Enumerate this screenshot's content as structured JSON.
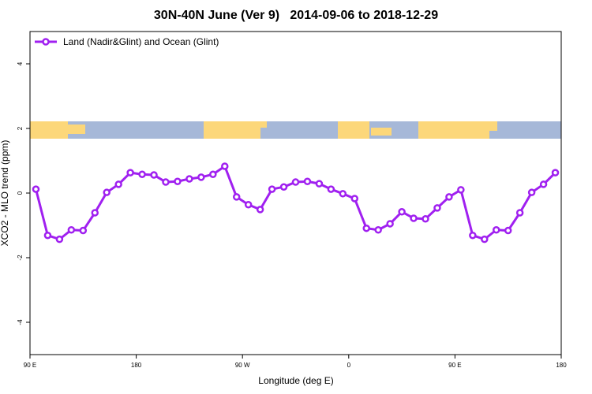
{
  "chart_data": {
    "type": "line",
    "title": "30N-40N June (Ver 9)   2014-09-06 to 2018-12-29",
    "x_label": "Longitude (deg E)",
    "y_label": "XCO2 - MLO trend (ppm)",
    "xlim": [
      90,
      540
    ],
    "ylim": [
      -5,
      5
    ],
    "xticks": [
      {
        "value": 90,
        "label": "90 E"
      },
      {
        "value": 180,
        "label": "180"
      },
      {
        "value": 270,
        "label": "90 W"
      },
      {
        "value": 360,
        "label": "0"
      },
      {
        "value": 450,
        "label": "90 E"
      },
      {
        "value": 540,
        "label": "180"
      }
    ],
    "yticks": [
      -4,
      -2,
      0,
      2,
      4
    ],
    "grid": false,
    "legend": "top-left",
    "x": [
      95,
      105,
      115,
      125,
      135,
      145,
      155,
      165,
      175,
      185,
      195,
      205,
      215,
      225,
      235,
      245,
      255,
      265,
      275,
      285,
      295,
      305,
      315,
      325,
      335,
      345,
      355,
      365,
      375,
      385,
      395,
      405,
      415,
      425,
      435,
      445,
      455,
      465,
      475,
      485,
      495,
      505,
      515,
      525,
      535
    ],
    "series": [
      {
        "name": "Land (Nadir&Glint) and Ocean (Glint)",
        "color": "#a020f0",
        "values": [
          0.12,
          -1.31,
          -1.43,
          -1.14,
          -1.16,
          -0.61,
          0.02,
          0.27,
          0.63,
          0.58,
          0.56,
          0.34,
          0.36,
          0.44,
          0.49,
          0.58,
          0.83,
          -0.12,
          -0.36,
          -0.51,
          0.12,
          0.19,
          0.34,
          0.36,
          0.29,
          0.12,
          -0.02,
          -0.17,
          -1.09,
          -1.14,
          -0.95,
          -0.58,
          -0.78,
          -0.8,
          -0.46,
          -0.12,
          0.1,
          -1.31,
          -1.43,
          -1.14,
          -1.16,
          -0.61,
          0.02,
          0.27,
          0.63
        ]
      }
    ]
  }
}
